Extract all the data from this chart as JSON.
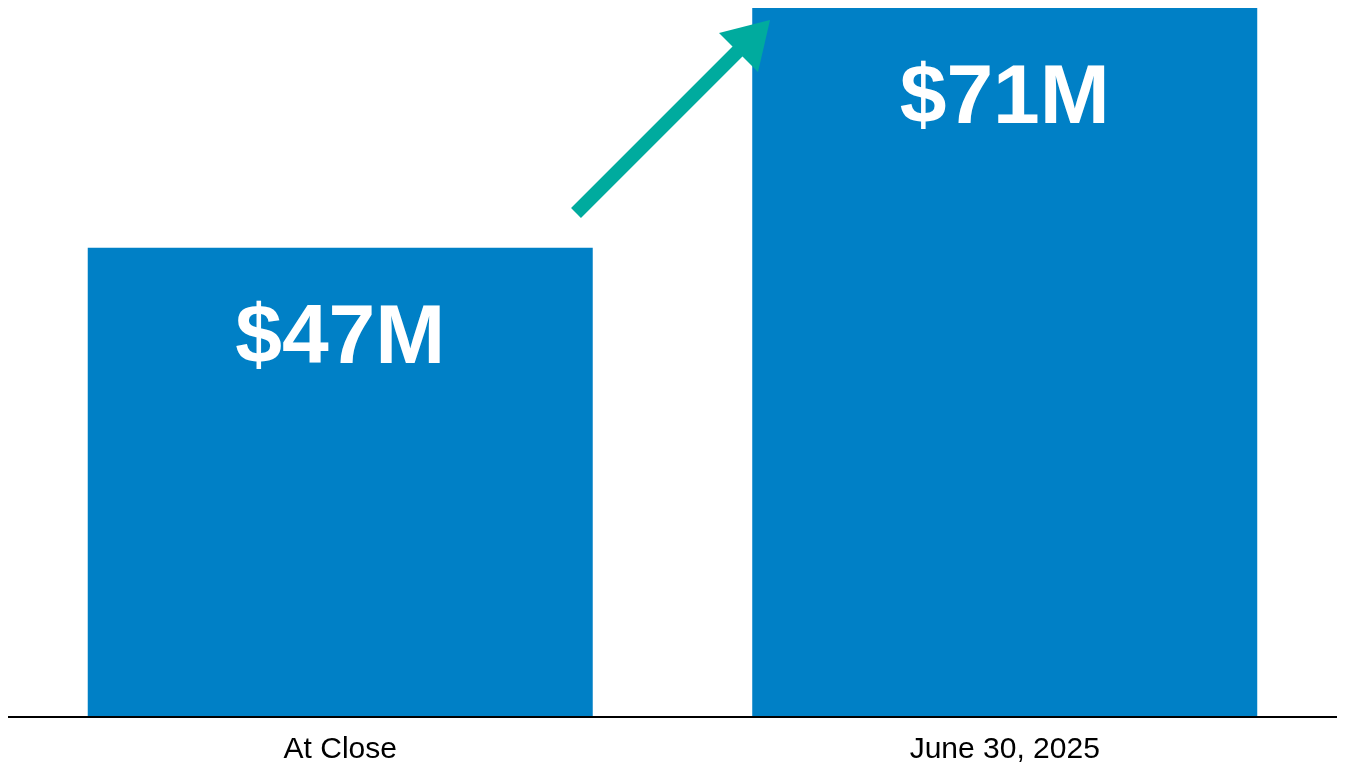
{
  "chart_data": {
    "type": "bar",
    "categories": [
      "At Close",
      "June 30, 2025"
    ],
    "values": [
      47,
      71
    ],
    "color": "#0080c6",
    "value_labels": [
      "$47M",
      "$71M"
    ]
  }
}
